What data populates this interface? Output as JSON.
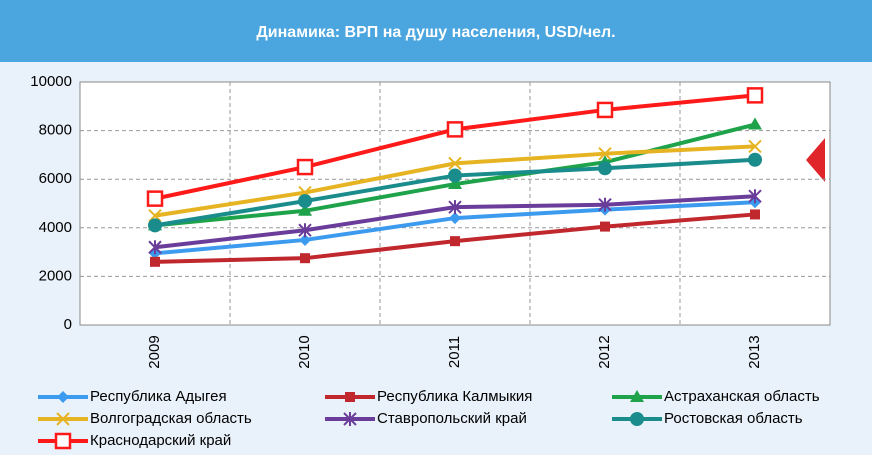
{
  "chart_data": {
    "type": "line",
    "title": "Динамика: ВРП на душу населения, USD/чел.",
    "categories": [
      "2009",
      "2010",
      "2011",
      "2012",
      "2013"
    ],
    "ylim": [
      0,
      10000
    ],
    "yticks": [
      0,
      2000,
      4000,
      6000,
      8000,
      10000
    ],
    "grid": true,
    "series": [
      {
        "name": "Республика Адыгея",
        "color": "#3d9bef",
        "marker": "diamond",
        "values": [
          2950,
          3500,
          4400,
          4750,
          5050
        ]
      },
      {
        "name": "Республика Калмыкия",
        "color": "#c0282d",
        "marker": "square",
        "values": [
          2600,
          2750,
          3450,
          4050,
          4550
        ]
      },
      {
        "name": "Астраханская область",
        "color": "#1ea34a",
        "marker": "triangle",
        "values": [
          4100,
          4700,
          5800,
          6700,
          8250
        ]
      },
      {
        "name": "Волгоградская область",
        "color": "#e6b422",
        "marker": "x",
        "values": [
          4500,
          5450,
          6650,
          7050,
          7350
        ]
      },
      {
        "name": "Ставропольский край",
        "color": "#6a3d9a",
        "marker": "star",
        "values": [
          3200,
          3900,
          4850,
          4950,
          5300
        ]
      },
      {
        "name": "Ростовская область",
        "color": "#1a8c8c",
        "marker": "circle",
        "values": [
          4100,
          5100,
          6150,
          6450,
          6800
        ]
      },
      {
        "name": "Краснодарский край",
        "color": "#ff1a1a",
        "marker": "open-square",
        "values": [
          5200,
          6500,
          8050,
          8850,
          9450
        ]
      }
    ]
  }
}
